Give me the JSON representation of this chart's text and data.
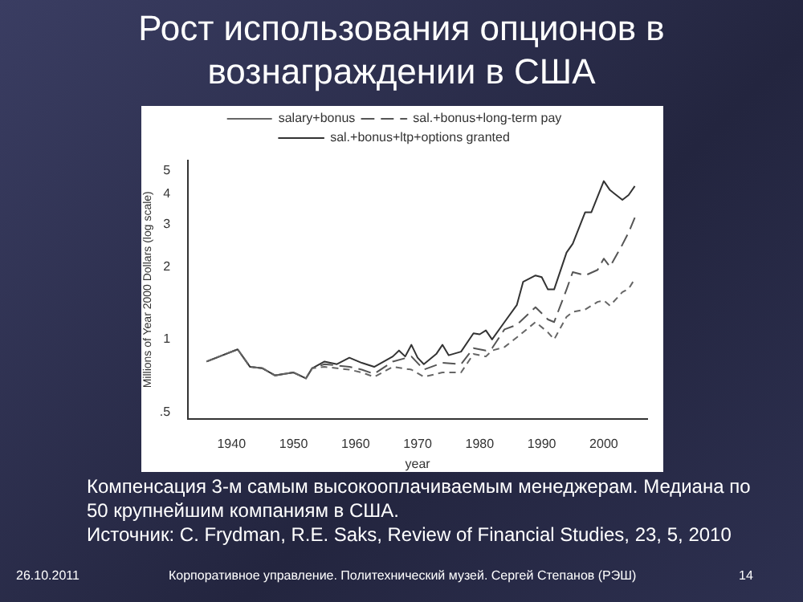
{
  "chart_data": {
    "type": "line",
    "title": "Рост использования опционов в вознаграждении в США",
    "xlabel": "year",
    "ylabel": "Millions of Year 2000 Dollars (log scale)",
    "log": "y",
    "xlim": [
      1933,
      2007
    ],
    "xticks": [
      1940,
      1950,
      1960,
      1970,
      1980,
      1990,
      2000
    ],
    "ylim": [
      0.47,
      5.5
    ],
    "yticks": [
      {
        "value": 0.5,
        "label": ".5"
      },
      1,
      2,
      3,
      4,
      5
    ],
    "grid": false,
    "legend": "top",
    "marker": "none",
    "series": [
      {
        "name": "salary+bonus",
        "color": "#666666",
        "line_style": "dashed",
        "x": [
          1936,
          1941,
          1943,
          1945,
          1947,
          1950,
          1952,
          1953,
          1955,
          1959,
          1961,
          1963,
          1966,
          1969,
          1971,
          1974,
          1977,
          1979,
          1981,
          1982,
          1984,
          1986,
          1989,
          1991,
          1992,
          1994,
          1995,
          1997,
          1999,
          2000,
          2001,
          2003,
          2004,
          2005
        ],
        "values": [
          0.81,
          0.91,
          0.77,
          0.76,
          0.71,
          0.73,
          0.69,
          0.76,
          0.77,
          0.75,
          0.73,
          0.7,
          0.77,
          0.75,
          0.7,
          0.73,
          0.73,
          0.87,
          0.85,
          0.9,
          0.93,
          1.02,
          1.18,
          1.07,
          1.0,
          1.24,
          1.3,
          1.33,
          1.43,
          1.45,
          1.38,
          1.57,
          1.62,
          1.78
        ]
      },
      {
        "name": "sal.+bonus+long-term pay",
        "color": "#555555",
        "line_style": "dashed",
        "x": [
          1936,
          1941,
          1943,
          1945,
          1947,
          1950,
          1952,
          1953,
          1955,
          1959,
          1961,
          1963,
          1966,
          1969,
          1971,
          1974,
          1977,
          1979,
          1981,
          1982,
          1984,
          1986,
          1989,
          1991,
          1992,
          1994,
          1995,
          1997,
          1999,
          2000,
          2001,
          2003,
          2004,
          2005
        ],
        "values": [
          0.81,
          0.91,
          0.77,
          0.76,
          0.71,
          0.73,
          0.69,
          0.76,
          0.79,
          0.77,
          0.75,
          0.72,
          0.81,
          0.85,
          0.75,
          0.8,
          0.79,
          0.92,
          0.9,
          0.92,
          1.1,
          1.15,
          1.36,
          1.21,
          1.18,
          1.61,
          1.9,
          1.84,
          1.94,
          2.16,
          2.0,
          2.47,
          2.77,
          3.19
        ]
      },
      {
        "name": "sal.+bonus+ltp+options granted",
        "color": "#333333",
        "line_style": "solid",
        "x": [
          1936,
          1941,
          1943,
          1945,
          1947,
          1950,
          1952,
          1953,
          1955,
          1957,
          1959,
          1961,
          1963,
          1966,
          1967,
          1968,
          1969,
          1970,
          1971,
          1973,
          1974,
          1975,
          1977,
          1979,
          1980,
          1981,
          1982,
          1984,
          1986,
          1987,
          1989,
          1990,
          1991,
          1992,
          1994,
          1995,
          1997,
          1998,
          2000,
          2001,
          2003,
          2004,
          2005
        ],
        "values": [
          0.81,
          0.91,
          0.77,
          0.76,
          0.71,
          0.73,
          0.69,
          0.76,
          0.81,
          0.79,
          0.84,
          0.8,
          0.77,
          0.85,
          0.9,
          0.85,
          0.95,
          0.84,
          0.79,
          0.87,
          0.95,
          0.86,
          0.89,
          1.06,
          1.05,
          1.09,
          1.0,
          1.18,
          1.39,
          1.73,
          1.84,
          1.81,
          1.61,
          1.61,
          2.29,
          2.49,
          3.36,
          3.36,
          4.52,
          4.15,
          3.78,
          3.96,
          4.31
        ]
      }
    ],
    "annotations": [
      "Компенсация 3-м самым высокооплачиваемым менеджерам. Медиана по 50 крупнейшим компаниям в США.",
      "Источник: C. Frydman, R.E. Saks, Review of Financial Studies, 23, 5, 2010",
      "26.10.2011",
      "Корпоративное управление. Политехнический музей. Сергей Степанов (РЭШ)",
      "14"
    ]
  }
}
